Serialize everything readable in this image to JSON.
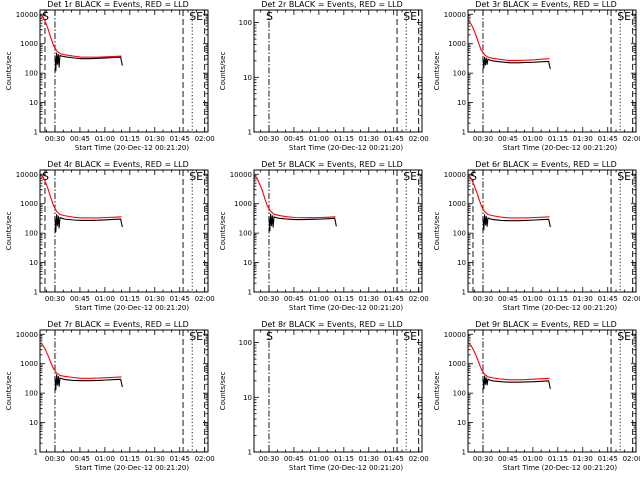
{
  "chart_data": [
    {
      "type": "line",
      "title": "Det 1r BLACK = Events, RED = LLD",
      "xlabel": "Start Time (20-Dec-12 00:21:20)",
      "ylabel": "Counts/sec",
      "x_ticks": [
        "00:30",
        "00:45",
        "01:00",
        "01:15",
        "01:30",
        "01:45",
        "02:00"
      ],
      "y_ticks": [
        "1",
        "10",
        "100",
        "1000",
        "10000"
      ],
      "xlim_minutes": [
        0,
        101
      ],
      "ylim": [
        1,
        14000
      ],
      "y_scale": "log",
      "markers": [
        {
          "x": 3,
          "label": "S",
          "style": "dash"
        },
        {
          "x": 9,
          "style": "dashdot"
        },
        {
          "x": 86,
          "style": "dash"
        },
        {
          "x": 91.5,
          "label": "SE",
          "style": "dot"
        },
        {
          "x": 99,
          "style": "dash"
        }
      ],
      "series": [
        {
          "name": "RED",
          "color": "#ff0000",
          "x": [
            0.5,
            2,
            3.5,
            5,
            6.5,
            8,
            10,
            12,
            15,
            20,
            25,
            30,
            35,
            40,
            45,
            49
          ],
          "y": [
            10000,
            8000,
            5000,
            3000,
            1600,
            900,
            580,
            460,
            420,
            380,
            350,
            350,
            350,
            360,
            370,
            380
          ]
        },
        {
          "name": "BLACK",
          "color": "#000000",
          "x": [
            9,
            9.5,
            10,
            10.5,
            11,
            11.5,
            12,
            13,
            15,
            20,
            25,
            30,
            35,
            40,
            45,
            48.5,
            49,
            49.5
          ],
          "y": [
            400,
            120,
            480,
            200,
            430,
            160,
            400,
            380,
            360,
            330,
            310,
            310,
            320,
            330,
            340,
            350,
            250,
            180
          ]
        }
      ]
    },
    {
      "type": "line",
      "title": "Det 2r BLACK = Events, RED = LLD",
      "xlabel": "Start Time (20-Dec-12 00:21:20)",
      "ylabel": "Counts/sec",
      "x_ticks": [
        "00:30",
        "00:45",
        "01:00",
        "01:15",
        "01:30",
        "01:45",
        "02:00"
      ],
      "y_ticks": [
        "1",
        "10",
        "100"
      ],
      "xlim_minutes": [
        0,
        101
      ],
      "ylim": [
        1,
        170
      ],
      "y_scale": "log",
      "markers": [
        {
          "x": 9,
          "label": "S",
          "style": "dashdot"
        },
        {
          "x": 86,
          "style": "dash"
        },
        {
          "x": 91.5,
          "label": "SE",
          "style": "dot"
        },
        {
          "x": 99,
          "style": "dash"
        }
      ],
      "series": []
    },
    {
      "type": "line",
      "title": "Det 3r BLACK = Events, RED = LLD",
      "xlabel": "Start Time (20-Dec-12 00:21:20)",
      "ylabel": "Counts/sec",
      "x_ticks": [
        "00:30",
        "00:45",
        "01:00",
        "01:15",
        "01:30",
        "01:45",
        "02:00"
      ],
      "y_ticks": [
        "1",
        "10",
        "100",
        "1000",
        "10000"
      ],
      "xlim_minutes": [
        0,
        101
      ],
      "ylim": [
        1,
        14000
      ],
      "y_scale": "log",
      "markers": [
        {
          "x": 9,
          "style": "dashdot"
        },
        {
          "x": 86,
          "style": "dash"
        },
        {
          "x": 91.5,
          "label": "SE",
          "style": "dot"
        },
        {
          "x": 99,
          "style": "dash"
        }
      ],
      "series": [
        {
          "name": "RED",
          "color": "#ff0000",
          "x": [
            0.5,
            2,
            3.5,
            5,
            6.5,
            8,
            10,
            12,
            15,
            20,
            25,
            30,
            35,
            40,
            45,
            49
          ],
          "y": [
            6000,
            4500,
            3000,
            1800,
            1000,
            600,
            420,
            350,
            320,
            290,
            270,
            270,
            275,
            285,
            300,
            310
          ]
        },
        {
          "name": "BLACK",
          "color": "#000000",
          "x": [
            9,
            9.5,
            10,
            10.5,
            11,
            11.5,
            12,
            13,
            15,
            20,
            25,
            30,
            35,
            40,
            45,
            48.5,
            49,
            49.5
          ],
          "y": [
            300,
            150,
            350,
            190,
            320,
            200,
            300,
            280,
            260,
            240,
            225,
            225,
            230,
            235,
            245,
            250,
            180,
            140
          ]
        }
      ]
    },
    {
      "type": "line",
      "title": "Det 4r BLACK = Events, RED = LLD",
      "xlabel": "Start Time (20-Dec-12 00:21:20)",
      "ylabel": "Counts/sec",
      "x_ticks": [
        "00:30",
        "00:45",
        "01:00",
        "01:15",
        "01:30",
        "01:45",
        "02:00"
      ],
      "y_ticks": [
        "1",
        "10",
        "100",
        "1000",
        "10000"
      ],
      "xlim_minutes": [
        0,
        101
      ],
      "ylim": [
        1,
        14000
      ],
      "y_scale": "log",
      "markers": [
        {
          "x": 3,
          "label": "S",
          "style": "dash"
        },
        {
          "x": 9,
          "style": "dashdot"
        },
        {
          "x": 86,
          "style": "dash"
        },
        {
          "x": 91.5,
          "label": "SE",
          "style": "dot"
        },
        {
          "x": 99,
          "style": "dash"
        }
      ],
      "series": [
        {
          "name": "RED",
          "color": "#ff0000",
          "x": [
            0.5,
            2,
            3.5,
            5,
            6.5,
            8,
            10,
            12,
            15,
            20,
            25,
            30,
            35,
            40,
            45,
            49
          ],
          "y": [
            10000,
            8000,
            5000,
            3000,
            1600,
            900,
            550,
            430,
            390,
            350,
            330,
            330,
            330,
            340,
            350,
            360
          ]
        },
        {
          "name": "BLACK",
          "color": "#000000",
          "x": [
            9,
            9.5,
            10,
            10.5,
            11,
            11.5,
            12,
            13,
            15,
            20,
            25,
            30,
            35,
            40,
            45,
            48.5,
            49,
            49.5
          ],
          "y": [
            350,
            110,
            430,
            180,
            380,
            150,
            340,
            320,
            300,
            280,
            270,
            270,
            275,
            285,
            295,
            300,
            220,
            160
          ]
        }
      ]
    },
    {
      "type": "line",
      "title": "Det 5r BLACK = Events, RED = LLD",
      "xlabel": "Start Time (20-Dec-12 00:21:20)",
      "ylabel": "Counts/sec",
      "x_ticks": [
        "00:30",
        "00:45",
        "01:00",
        "01:15",
        "01:30",
        "01:45",
        "02:00"
      ],
      "y_ticks": [
        "1",
        "10",
        "100",
        "1000",
        "10000"
      ],
      "xlim_minutes": [
        0,
        101
      ],
      "ylim": [
        1,
        14000
      ],
      "y_scale": "log",
      "markers": [
        {
          "x": 9,
          "style": "dashdot"
        },
        {
          "x": 86,
          "style": "dash"
        },
        {
          "x": 91.5,
          "label": "SE",
          "style": "dot"
        },
        {
          "x": 99,
          "style": "dash"
        }
      ],
      "series": [
        {
          "name": "RED",
          "color": "#ff0000",
          "x": [
            0.5,
            2,
            3.5,
            5,
            6.5,
            8,
            10,
            12,
            15,
            20,
            25,
            30,
            35,
            40,
            45,
            49
          ],
          "y": [
            9000,
            7000,
            4500,
            2800,
            1500,
            850,
            560,
            440,
            400,
            360,
            340,
            335,
            335,
            340,
            350,
            360
          ]
        },
        {
          "name": "BLACK",
          "color": "#000000",
          "x": [
            9,
            9.5,
            10,
            10.5,
            11,
            11.5,
            12,
            13,
            15,
            20,
            25,
            30,
            35,
            40,
            45,
            48.5,
            49,
            49.5
          ],
          "y": [
            350,
            120,
            440,
            180,
            390,
            160,
            360,
            340,
            320,
            300,
            290,
            290,
            295,
            300,
            310,
            320,
            240,
            170
          ]
        }
      ]
    },
    {
      "type": "line",
      "title": "Det 6r BLACK = Events, RED = LLD",
      "xlabel": "Start Time (20-Dec-12 00:21:20)",
      "ylabel": "Counts/sec",
      "x_ticks": [
        "00:30",
        "00:45",
        "01:00",
        "01:15",
        "01:30",
        "01:45",
        "02:00"
      ],
      "y_ticks": [
        "1",
        "10",
        "100",
        "1000",
        "10000"
      ],
      "xlim_minutes": [
        0,
        101
      ],
      "ylim": [
        1,
        14000
      ],
      "y_scale": "log",
      "markers": [
        {
          "x": 3,
          "label": "S",
          "style": "dash"
        },
        {
          "x": 9,
          "style": "dashdot"
        },
        {
          "x": 86,
          "style": "dash"
        },
        {
          "x": 91.5,
          "label": "SE",
          "style": "dot"
        },
        {
          "x": 99,
          "style": "dash"
        }
      ],
      "series": [
        {
          "name": "RED",
          "color": "#ff0000",
          "x": [
            0.5,
            2,
            3.5,
            5,
            6.5,
            8,
            10,
            12,
            15,
            20,
            25,
            30,
            35,
            40,
            45,
            49
          ],
          "y": [
            9000,
            7000,
            4500,
            2700,
            1500,
            850,
            540,
            430,
            390,
            350,
            330,
            330,
            330,
            340,
            350,
            360
          ]
        },
        {
          "name": "BLACK",
          "color": "#000000",
          "x": [
            9,
            9.5,
            10,
            10.5,
            11,
            11.5,
            12,
            13,
            15,
            20,
            25,
            30,
            35,
            40,
            45,
            48.5,
            49,
            49.5
          ],
          "y": [
            330,
            130,
            420,
            190,
            370,
            170,
            330,
            310,
            290,
            270,
            265,
            265,
            270,
            280,
            290,
            295,
            220,
            160
          ]
        }
      ]
    },
    {
      "type": "line",
      "title": "Det 7r BLACK = Events, RED = LLD",
      "xlabel": "Start Time (20-Dec-12 00:21:20)",
      "ylabel": "Counts/sec",
      "x_ticks": [
        "00:30",
        "00:45",
        "01:00",
        "01:15",
        "01:30",
        "01:45",
        "02:00"
      ],
      "y_ticks": [
        "1",
        "10",
        "100",
        "1000",
        "10000"
      ],
      "xlim_minutes": [
        0,
        101
      ],
      "ylim": [
        1,
        14000
      ],
      "y_scale": "log",
      "markers": [
        {
          "x": 9,
          "style": "dashdot"
        },
        {
          "x": 86,
          "style": "dash"
        },
        {
          "x": 91.5,
          "label": "SE",
          "style": "dot"
        },
        {
          "x": 99,
          "style": "dash"
        }
      ],
      "series": [
        {
          "name": "RED",
          "color": "#ff0000",
          "x": [
            0.5,
            2,
            3.5,
            5,
            6.5,
            8,
            10,
            12,
            15,
            20,
            25,
            30,
            35,
            40,
            45,
            49
          ],
          "y": [
            5000,
            4000,
            2800,
            1800,
            1100,
            700,
            480,
            400,
            370,
            340,
            320,
            320,
            325,
            335,
            345,
            355
          ]
        },
        {
          "name": "BLACK",
          "color": "#000000",
          "x": [
            9,
            9.5,
            10,
            10.5,
            11,
            11.5,
            12,
            13,
            15,
            20,
            25,
            30,
            35,
            40,
            45,
            48.5,
            49,
            49.5
          ],
          "y": [
            330,
            130,
            420,
            190,
            370,
            170,
            330,
            310,
            290,
            270,
            265,
            265,
            270,
            280,
            290,
            295,
            220,
            160
          ]
        }
      ]
    },
    {
      "type": "line",
      "title": "Det 8r BLACK = Events, RED = LLD",
      "xlabel": "Start Time (20-Dec-12 00:21:20)",
      "ylabel": "Counts/sec",
      "x_ticks": [
        "00:30",
        "00:45",
        "01:00",
        "01:15",
        "01:30",
        "01:45",
        "02:00"
      ],
      "y_ticks": [
        "1",
        "10",
        "100"
      ],
      "xlim_minutes": [
        0,
        101
      ],
      "ylim": [
        1,
        170
      ],
      "y_scale": "log",
      "markers": [
        {
          "x": 9,
          "label": "S",
          "style": "dashdot"
        },
        {
          "x": 86,
          "style": "dash"
        },
        {
          "x": 91.5,
          "label": "SE",
          "style": "dot"
        },
        {
          "x": 99,
          "style": "dash"
        }
      ],
      "series": []
    },
    {
      "type": "line",
      "title": "Det 9r BLACK = Events, RED = LLD",
      "xlabel": "Start Time (20-Dec-12 00:21:20)",
      "ylabel": "Counts/sec",
      "x_ticks": [
        "00:30",
        "00:45",
        "01:00",
        "01:15",
        "01:30",
        "01:45",
        "02:00"
      ],
      "y_ticks": [
        "1",
        "10",
        "100",
        "1000",
        "10000"
      ],
      "xlim_minutes": [
        0,
        101
      ],
      "ylim": [
        1,
        14000
      ],
      "y_scale": "log",
      "markers": [
        {
          "x": 9,
          "style": "dashdot"
        },
        {
          "x": 86,
          "style": "dash"
        },
        {
          "x": 91.5,
          "label": "SE",
          "style": "dot"
        },
        {
          "x": 99,
          "style": "dash"
        }
      ],
      "series": [
        {
          "name": "RED",
          "color": "#ff0000",
          "x": [
            0.5,
            2,
            3.5,
            5,
            6.5,
            8,
            10,
            12,
            15,
            20,
            25,
            30,
            35,
            40,
            45,
            49
          ],
          "y": [
            5000,
            4000,
            2800,
            1800,
            1100,
            650,
            430,
            360,
            330,
            300,
            285,
            285,
            290,
            300,
            310,
            320
          ]
        },
        {
          "name": "BLACK",
          "color": "#000000",
          "x": [
            9,
            9.5,
            10,
            10.5,
            11,
            11.5,
            12,
            13,
            15,
            20,
            25,
            30,
            35,
            40,
            45,
            48.5,
            49,
            49.5
          ],
          "y": [
            320,
            140,
            380,
            200,
            330,
            190,
            300,
            280,
            260,
            245,
            235,
            235,
            240,
            245,
            255,
            260,
            190,
            140
          ]
        }
      ]
    }
  ]
}
